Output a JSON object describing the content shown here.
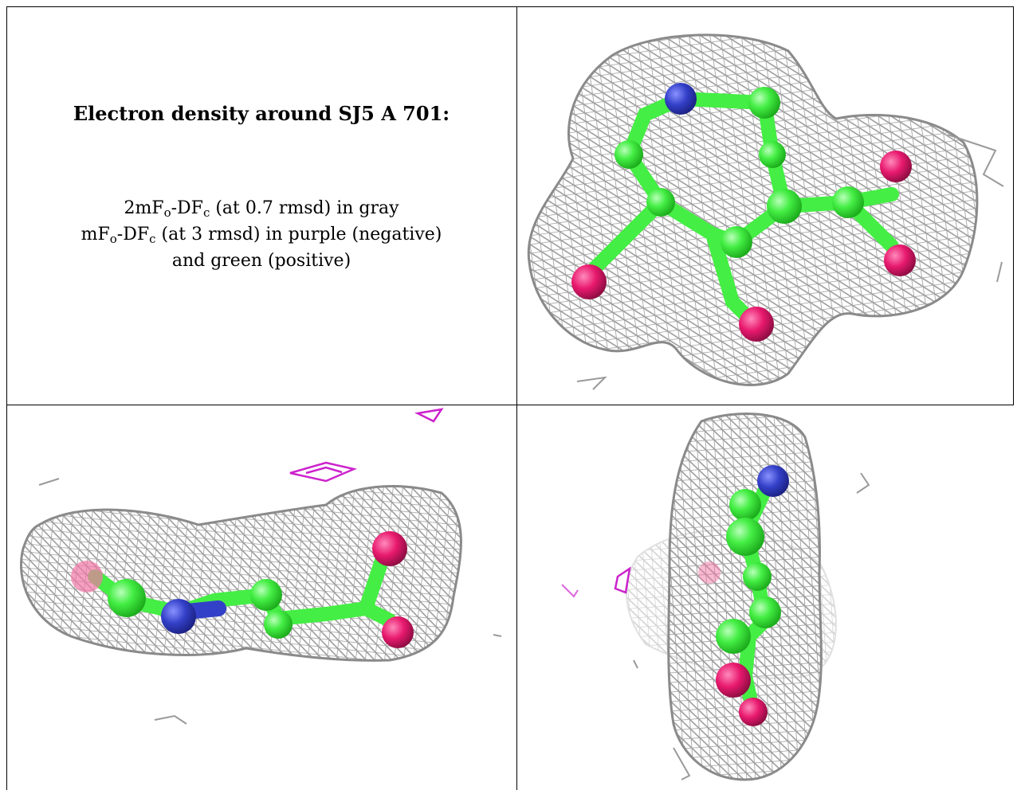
{
  "caption": {
    "title": "Electron density around SJ5 A 701:",
    "line1": {
      "a": "2mF",
      "a_sub": "o",
      "b": "-DF",
      "b_sub": "c",
      "c": " (at 0.7 rmsd) in gray"
    },
    "line2": {
      "a": "mF",
      "a_sub": "o",
      "b": "-DF",
      "b_sub": "c",
      "c": " (at 3 rmsd) in purple (negative)"
    },
    "line3": "and green (positive)"
  },
  "colors": {
    "mesh_gray": "#a8a8a8",
    "carbon_green": "#44ee44",
    "nitrogen_blue": "#3340c8",
    "oxygen_pink": "#e8196e",
    "negative_purple": "#cc22cc"
  }
}
